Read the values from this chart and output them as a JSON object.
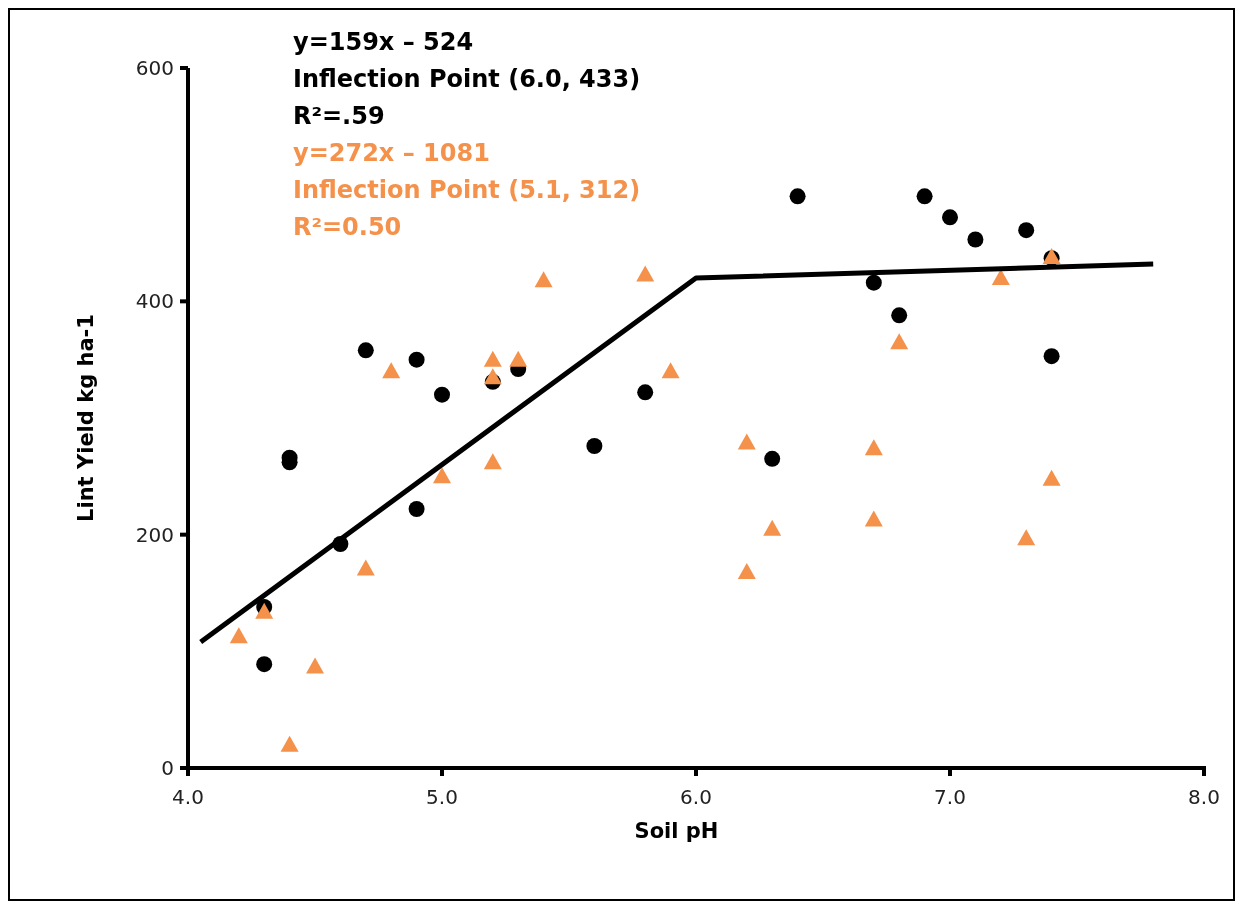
{
  "chart_data": {
    "type": "scatter",
    "xlabel": "Soil pH",
    "ylabel": "Lint Yield kg ha-1",
    "xlim": [
      4,
      8
    ],
    "xticks": [
      {
        "value": 4,
        "label": "4.0"
      },
      {
        "value": 5,
        "label": "5.0"
      },
      {
        "value": 6,
        "label": "6.0"
      },
      {
        "value": 7,
        "label": "7.0"
      },
      {
        "value": 8,
        "label": "8.0"
      }
    ],
    "ylim": [
      0,
      600
    ],
    "yticks": [
      0,
      200,
      400,
      600
    ],
    "grid": false,
    "annotations": [
      "y=159x – 524",
      "Inflection Point (6.0, 433)",
      "R²=.59",
      "y=272x – 1081",
      "Inflection Point (5.1, 312)",
      "R²=0.50"
    ],
    "series": [
      {
        "color": "#000000",
        "marker": "circle",
        "x": [
          4.7,
          4.9,
          5.0,
          5.2,
          5.3,
          4.4,
          4.4,
          5.6,
          5.8,
          4.9,
          4.6,
          4.3,
          4.3,
          6.4,
          6.9,
          7.0,
          7.1,
          7.3,
          7.4,
          6.7,
          6.8,
          7.4,
          6.3
        ],
        "values": [
          358,
          350,
          320,
          331,
          342,
          266,
          262,
          276,
          322,
          222,
          192,
          138,
          89,
          490,
          490,
          472,
          453,
          461,
          437,
          416,
          388,
          353,
          265
        ]
      },
      {
        "color": "#f4914a",
        "marker": "triangle",
        "x": [
          4.8,
          5.2,
          5.3,
          5.2,
          5.4,
          5.8,
          5.9,
          5.2,
          5.0,
          4.7,
          4.3,
          4.2,
          4.5,
          4.4,
          6.2,
          6.2,
          6.3,
          6.7,
          6.7,
          6.8,
          7.2,
          7.4,
          7.4,
          7.3
        ],
        "values": [
          340,
          350,
          350,
          335,
          418,
          423,
          340,
          262,
          250,
          171,
          134,
          113,
          87,
          20,
          279,
          168,
          205,
          274,
          213,
          365,
          420,
          438,
          248,
          197
        ]
      },
      {
        "type": "line",
        "color": "#000000",
        "x": [
          4.05,
          6.0,
          7.8
        ],
        "values": [
          108,
          420,
          432
        ]
      }
    ]
  }
}
